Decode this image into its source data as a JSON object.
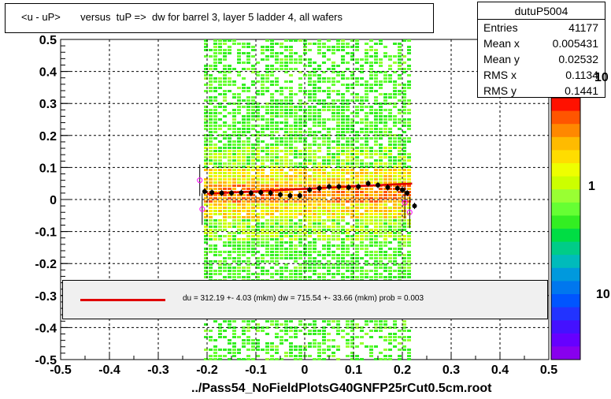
{
  "title": "<u - uP>       versus  tuP =>  dw for barrel 3, layer 5 ladder 4, all wafers",
  "stats": {
    "name": "dutuP5004",
    "rows": [
      {
        "label": "Entries",
        "value": "41177"
      },
      {
        "label": "Mean x",
        "value": "0.005431"
      },
      {
        "label": "Mean y",
        "value": "0.02532"
      },
      {
        "label": "RMS x",
        "value": "0.1134"
      },
      {
        "label": "RMS y",
        "value": "0.1441"
      }
    ]
  },
  "legend_text": "du =  312.19 +-  4.03 (mkm) dw =  715.54 +- 33.66 (mkm) prob = 0.003",
  "x_title": "../Pass54_NoFieldPlotsG40GNFP25rCut0.5cm.root",
  "colorbar_labels": [
    "10",
    "1",
    "10"
  ],
  "colors": {
    "fit_line": "#e00000",
    "profile_points": "#000000",
    "outlier_points": "#ff00ff"
  },
  "chart_data": {
    "type": "heatmap",
    "xlim": [
      -0.5,
      0.5
    ],
    "ylim": [
      -0.5,
      0.5
    ],
    "x_ticks": [
      "-0.5",
      "-0.4",
      "-0.3",
      "-0.2",
      "-0.1",
      "0",
      "0.1",
      "0.2",
      "0.3",
      "0.4",
      "0.5"
    ],
    "y_ticks": [
      "0.5",
      "0.4",
      "0.3",
      "0.2",
      "0.1",
      "0",
      "-0.1",
      "-0.2",
      "-0.3",
      "-0.4",
      "-0.5"
    ],
    "x_tick_values": [
      -0.5,
      -0.4,
      -0.3,
      -0.2,
      -0.1,
      0,
      0.1,
      0.2,
      0.3,
      0.4,
      0.5
    ],
    "y_tick_values": [
      0.5,
      0.4,
      0.3,
      0.2,
      0.1,
      0,
      -0.1,
      -0.2,
      -0.3,
      -0.4,
      -0.5
    ],
    "grid": true,
    "z_scale": "log",
    "data_x_range": [
      -0.2,
      0.21
    ],
    "profile": {
      "x": [
        -0.205,
        -0.19,
        -0.17,
        -0.15,
        -0.13,
        -0.11,
        -0.09,
        -0.07,
        -0.05,
        -0.03,
        -0.01,
        0.01,
        0.03,
        0.05,
        0.07,
        0.09,
        0.11,
        0.13,
        0.15,
        0.17,
        0.19,
        0.2,
        0.21,
        0.225
      ],
      "y": [
        0.025,
        0.022,
        0.02,
        0.02,
        0.021,
        0.02,
        0.022,
        0.02,
        0.015,
        0.012,
        0.012,
        0.03,
        0.035,
        0.04,
        0.04,
        0.038,
        0.04,
        0.05,
        0.045,
        0.038,
        0.035,
        0.03,
        0.02,
        -0.02
      ]
    },
    "outliers": {
      "x": [
        -0.215,
        -0.21,
        0.205,
        0.215
      ],
      "y": [
        0.06,
        -0.03,
        -0.01,
        -0.04
      ]
    },
    "fit": {
      "x": [
        -0.2,
        0.22
      ],
      "y": [
        0.018,
        0.05
      ]
    }
  }
}
